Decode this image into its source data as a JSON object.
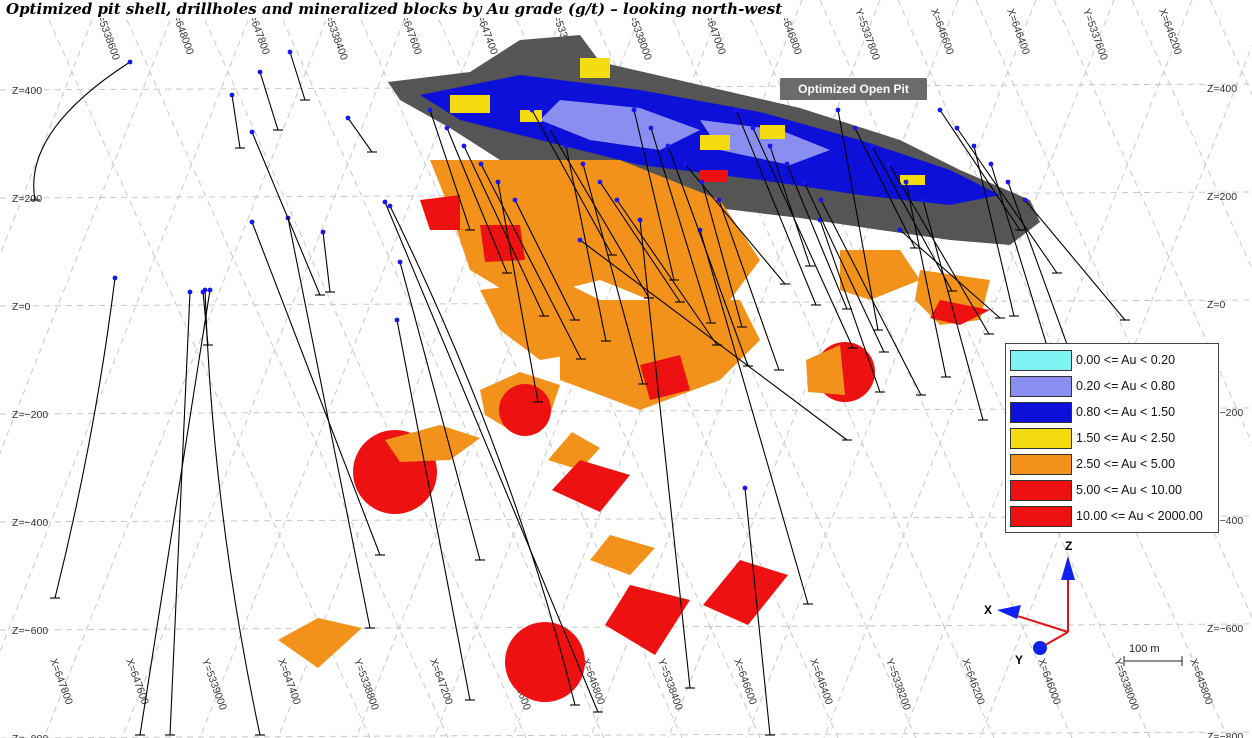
{
  "title": "Optimized pit shell, drillholes and mineralized blocks by Au grade (g/t) – looking north-west",
  "pit_label": "Optimized Open Pit",
  "legend": {
    "items": [
      {
        "label": "0.00 <= Au < 0.20",
        "color": "#7ff3f3"
      },
      {
        "label": "0.20 <= Au < 0.80",
        "color": "#8a8ef0"
      },
      {
        "label": "0.80 <= Au < 1.50",
        "color": "#0d10d8"
      },
      {
        "label": "1.50 <= Au < 2.50",
        "color": "#f4dc10"
      },
      {
        "label": "2.50 <= Au < 5.00",
        "color": "#f2921a"
      },
      {
        "label": "5.00 <= Au < 10.00",
        "color": "#ee1111"
      },
      {
        "label": "10.00 <= Au < 2000.00",
        "color": "#ee1111"
      }
    ]
  },
  "z_labels": [
    "Z=400",
    "Z=200",
    "Z=0",
    "Z=−200",
    "Z=−400",
    "Z=−600",
    "Z=−800"
  ],
  "grid_top_labels": [
    "Y=5338600",
    "X=648000",
    "X=647800",
    "Y=5338400",
    "X=647600",
    "X=647400",
    "Y=5338200",
    "Y=5338000",
    "X=647000",
    "X=646800",
    "Y=5337800",
    "X=646600",
    "X=646400",
    "Y=5337600",
    "X=646200"
  ],
  "grid_bottom_labels": [
    "X=647800",
    "X=647600",
    "Y=5339000",
    "X=647400",
    "Y=5338800",
    "X=647200",
    "Y=5338600",
    "X=646800",
    "Y=5338400",
    "X=646600",
    "X=646400",
    "Y=5338200",
    "X=646200",
    "X=646000",
    "Y=5338000",
    "X=645800"
  ],
  "axes": {
    "x": "X",
    "y": "Y",
    "z": "Z"
  },
  "scale_bar": "100 m",
  "colors": {
    "pit": "#555555",
    "ore_mid": "#f2921a",
    "ore_high": "#ee1111",
    "ore_low": "#0d10d8",
    "ore_lowmid": "#8a8ef0",
    "ore_yellow": "#f4dc10",
    "drill_collar": "#1616ee"
  }
}
